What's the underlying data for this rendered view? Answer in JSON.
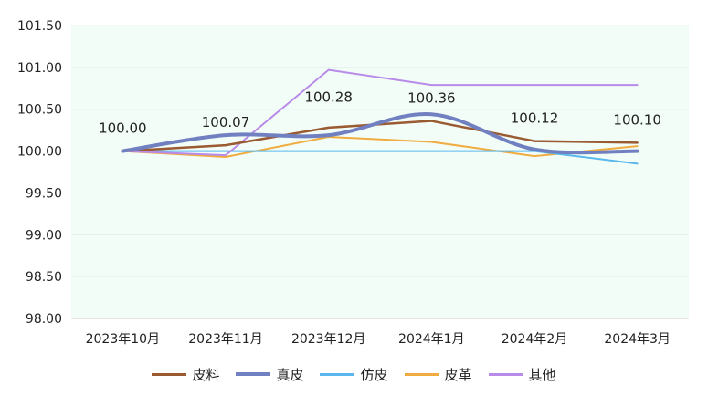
{
  "chart_data": {
    "type": "line",
    "categories": [
      "2023年10月",
      "2023年11月",
      "2023年12月",
      "2024年1月",
      "2024年2月",
      "2024年3月"
    ],
    "ylim": [
      98.0,
      101.5
    ],
    "yticks": [
      "101.50",
      "101.00",
      "100.50",
      "100.00",
      "99.50",
      "99.00",
      "98.50",
      "98.00"
    ],
    "grid": true,
    "legend_position": "bottom",
    "plot_background": "#f3fdf8",
    "series": [
      {
        "name": "皮料",
        "color": "#9a5a32",
        "smooth": false,
        "width": 2.5,
        "values": [
          100.0,
          100.07,
          100.28,
          100.36,
          100.12,
          100.1
        ]
      },
      {
        "name": "真皮",
        "color": "#7080c0",
        "smooth": true,
        "width": 4,
        "values": [
          100.0,
          100.19,
          100.19,
          100.44,
          100.02,
          100.0
        ]
      },
      {
        "name": "仿皮",
        "color": "#5ab8ec",
        "smooth": false,
        "width": 2,
        "values": [
          100.0,
          100.0,
          100.0,
          100.0,
          100.0,
          99.85
        ]
      },
      {
        "name": "皮革",
        "color": "#f0ac40",
        "smooth": false,
        "width": 2,
        "values": [
          100.0,
          99.93,
          100.17,
          100.11,
          99.94,
          100.06
        ]
      },
      {
        "name": "其他",
        "color": "#b88be8",
        "smooth": false,
        "width": 2,
        "values": [
          100.0,
          99.95,
          100.97,
          100.79,
          100.79,
          100.79
        ]
      }
    ],
    "data_labels": {
      "series": "皮料",
      "texts": [
        "100.00",
        "100.07",
        "100.28",
        "100.36",
        "100.12",
        "100.10"
      ]
    }
  }
}
